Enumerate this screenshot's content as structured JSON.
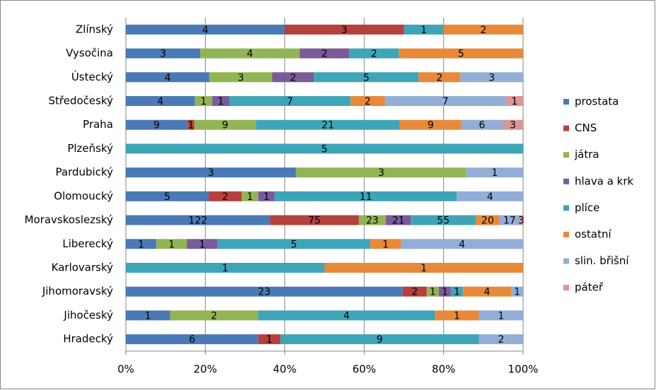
{
  "chart_data": {
    "type": "stacked_bar_100_horizontal",
    "categories": [
      "Zlínský",
      "Vysočina",
      "Ústecký",
      "Středočeský",
      "Praha",
      "Plzeňský",
      "Pardubický",
      "Olomoucký",
      "Moravskoslezský",
      "Liberecký",
      "Karlovarský",
      "Jihomoravský",
      "Jihočeský",
      "Hradecký"
    ],
    "series": [
      {
        "name": "prostata",
        "color": "#4a7ab5",
        "values": [
          4,
          3,
          4,
          4,
          9,
          null,
          3,
          5,
          122,
          1,
          null,
          23,
          1,
          6
        ]
      },
      {
        "name": "CNS",
        "color": "#b5403e",
        "values": [
          3,
          null,
          null,
          null,
          1,
          null,
          null,
          2,
          75,
          null,
          null,
          2,
          null,
          1
        ]
      },
      {
        "name": "játra",
        "color": "#93b454",
        "values": [
          null,
          4,
          3,
          1,
          9,
          null,
          3,
          1,
          23,
          1,
          null,
          1,
          2,
          null
        ]
      },
      {
        "name": "hlava a krk",
        "color": "#7a5b9a",
        "values": [
          null,
          2,
          2,
          1,
          null,
          null,
          null,
          1,
          21,
          1,
          null,
          1,
          null,
          null
        ]
      },
      {
        "name": "plíce",
        "color": "#3ea5b8",
        "values": [
          1,
          2,
          5,
          7,
          21,
          5,
          null,
          11,
          55,
          5,
          1,
          1,
          4,
          9
        ]
      },
      {
        "name": "ostatní",
        "color": "#e8893a",
        "values": [
          2,
          5,
          2,
          2,
          9,
          null,
          null,
          null,
          20,
          1,
          1,
          4,
          1,
          null
        ]
      },
      {
        "name": "slin. břišní",
        "color": "#93aed6",
        "values": [
          null,
          null,
          3,
          7,
          6,
          null,
          1,
          4,
          17,
          4,
          null,
          1,
          1,
          2
        ]
      },
      {
        "name": "páteř",
        "color": "#d99795",
        "values": [
          null,
          null,
          null,
          1,
          3,
          null,
          null,
          null,
          3,
          null,
          null,
          null,
          null,
          null
        ]
      }
    ],
    "xlim": [
      0,
      100
    ],
    "xticks": [
      {
        "value": 0,
        "label": "0%"
      },
      {
        "value": 20,
        "label": "20%"
      },
      {
        "value": 40,
        "label": "40%"
      },
      {
        "value": 60,
        "label": "60%"
      },
      {
        "value": 80,
        "label": "80%"
      },
      {
        "value": 100,
        "label": "100%"
      }
    ],
    "grid": true,
    "legend": "right"
  }
}
